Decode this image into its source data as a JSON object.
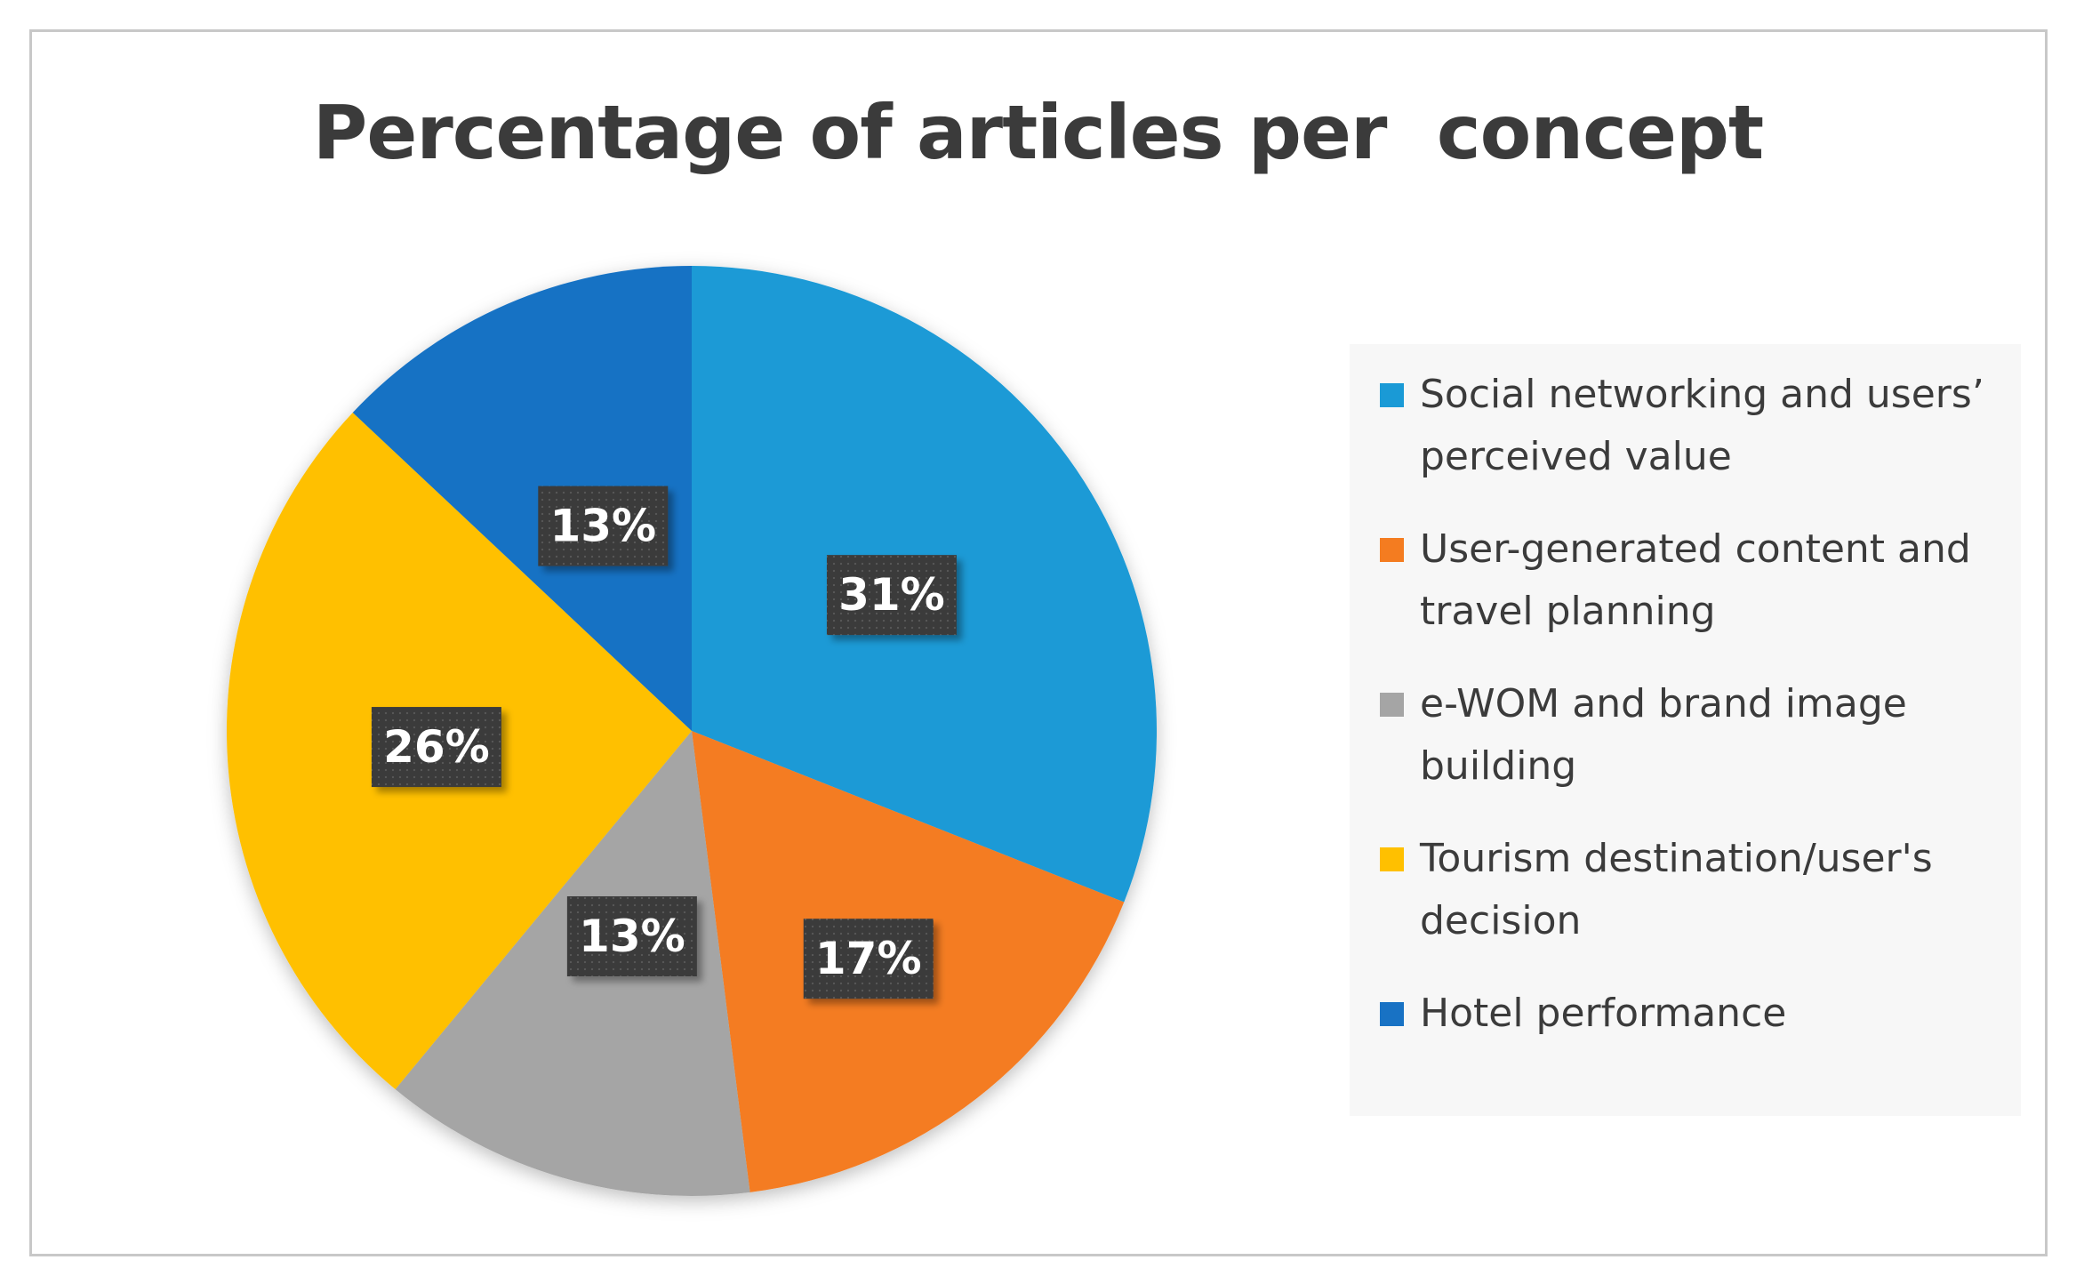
{
  "chart_data": {
    "type": "pie",
    "title": "Percentage of articles per  concept",
    "slices": [
      {
        "label": "Social networking and users’ perceived value",
        "value": 31,
        "display": "31%",
        "color": "#1a9ad6"
      },
      {
        "label": "User-generated content and travel planning",
        "value": 17,
        "display": "17%",
        "color": "#f47c20"
      },
      {
        "label": "e-WOM and brand image building",
        "value": 13,
        "display": "13%",
        "color": "#a5a5a5"
      },
      {
        "label": "Tourism destination/user's decision",
        "value": 26,
        "display": "26%",
        "color": "#ffc000"
      },
      {
        "label": "Hotel performance",
        "value": 13,
        "display": "13%",
        "color": "#1872c4"
      }
    ],
    "legend_position": "right",
    "data_label_style": "dark boxes with white bold text"
  }
}
